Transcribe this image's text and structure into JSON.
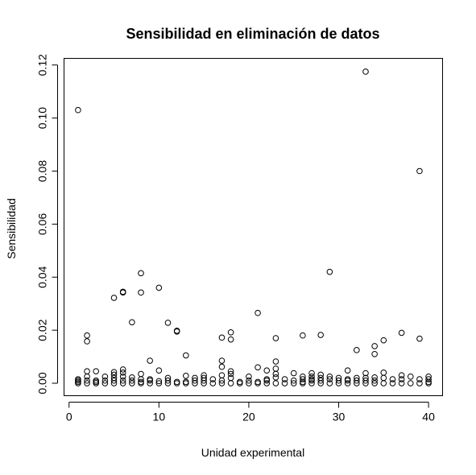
{
  "chart_data": {
    "type": "scatter",
    "title": "Sensibilidad en eliminación de datos",
    "xlabel": "Unidad experimental",
    "ylabel": "Sensibilidad",
    "xlim": [
      -0.56,
      41.56
    ],
    "ylim": [
      -0.0047,
      0.1225
    ],
    "x_ticks": [
      0,
      10,
      20,
      30,
      40
    ],
    "y_ticks": [
      0.0,
      0.02,
      0.04,
      0.06,
      0.08,
      0.1,
      0.12
    ],
    "x_tick_labels": [
      "0",
      "10",
      "20",
      "30",
      "40"
    ],
    "y_tick_labels": [
      "0.00",
      "0.02",
      "0.04",
      "0.06",
      "0.08",
      "0.10",
      "0.12"
    ],
    "grid": false,
    "legend": "none",
    "points": [
      [
        1,
        0.103
      ],
      [
        1,
        0.0015
      ],
      [
        1,
        0.001
      ],
      [
        1,
        0.0005
      ],
      [
        1,
        0.0
      ],
      [
        2,
        0.018
      ],
      [
        2,
        0.0158
      ],
      [
        2,
        0.0045
      ],
      [
        2,
        0.0025
      ],
      [
        2,
        0.001
      ],
      [
        2,
        0.0
      ],
      [
        3,
        0.0045
      ],
      [
        3,
        0.001
      ],
      [
        3,
        0.0005
      ],
      [
        3,
        0.0
      ],
      [
        4,
        0.0025
      ],
      [
        4,
        0.001
      ],
      [
        4,
        0.0
      ],
      [
        5,
        0.0322
      ],
      [
        5,
        0.0042
      ],
      [
        5,
        0.0032
      ],
      [
        5,
        0.002
      ],
      [
        5,
        0.001
      ],
      [
        5,
        0.0
      ],
      [
        6,
        0.0345
      ],
      [
        6,
        0.0342
      ],
      [
        6,
        0.0052
      ],
      [
        6,
        0.004
      ],
      [
        6,
        0.0025
      ],
      [
        6,
        0.001
      ],
      [
        6,
        0.0
      ],
      [
        7,
        0.023
      ],
      [
        7,
        0.0022
      ],
      [
        7,
        0.001
      ],
      [
        7,
        0.0
      ],
      [
        8,
        0.0415
      ],
      [
        8,
        0.0342
      ],
      [
        8,
        0.0035
      ],
      [
        8,
        0.0015
      ],
      [
        8,
        0.0005
      ],
      [
        8,
        0.0
      ],
      [
        9,
        0.0085
      ],
      [
        9,
        0.0015
      ],
      [
        9,
        0.001
      ],
      [
        9,
        0.0
      ],
      [
        10,
        0.036
      ],
      [
        10,
        0.0048
      ],
      [
        10,
        0.0008
      ],
      [
        10,
        0.0
      ],
      [
        11,
        0.0228
      ],
      [
        11,
        0.002
      ],
      [
        11,
        0.001
      ],
      [
        11,
        0.0
      ],
      [
        12,
        0.0198
      ],
      [
        12,
        0.0195
      ],
      [
        12,
        0.0005
      ],
      [
        12,
        0.0
      ],
      [
        13,
        0.0105
      ],
      [
        13,
        0.0028
      ],
      [
        13,
        0.0005
      ],
      [
        13,
        0.0
      ],
      [
        14,
        0.002
      ],
      [
        14,
        0.001
      ],
      [
        14,
        0.0
      ],
      [
        15,
        0.003
      ],
      [
        15,
        0.002
      ],
      [
        15,
        0.001
      ],
      [
        15,
        0.0
      ],
      [
        16,
        0.0015
      ],
      [
        16,
        0.0
      ],
      [
        17,
        0.0172
      ],
      [
        17,
        0.0085
      ],
      [
        17,
        0.0062
      ],
      [
        17,
        0.003
      ],
      [
        17,
        0.001
      ],
      [
        17,
        0.0
      ],
      [
        18,
        0.0192
      ],
      [
        18,
        0.0165
      ],
      [
        18,
        0.0045
      ],
      [
        18,
        0.0035
      ],
      [
        18,
        0.002
      ],
      [
        18,
        0.0
      ],
      [
        19,
        0.0005
      ],
      [
        19,
        0.0
      ],
      [
        20,
        0.0025
      ],
      [
        20,
        0.001
      ],
      [
        20,
        0.0
      ],
      [
        21,
        0.0265
      ],
      [
        21,
        0.006
      ],
      [
        21,
        0.0005
      ],
      [
        21,
        0.0
      ],
      [
        22,
        0.0048
      ],
      [
        22,
        0.0015
      ],
      [
        22,
        0.001
      ],
      [
        22,
        0.0
      ],
      [
        23,
        0.017
      ],
      [
        23,
        0.0082
      ],
      [
        23,
        0.0055
      ],
      [
        23,
        0.0035
      ],
      [
        23,
        0.0022
      ],
      [
        23,
        0.0
      ],
      [
        24,
        0.0015
      ],
      [
        24,
        0.0
      ],
      [
        25,
        0.0038
      ],
      [
        25,
        0.001
      ],
      [
        25,
        0.0
      ],
      [
        26,
        0.018
      ],
      [
        26,
        0.0025
      ],
      [
        26,
        0.0015
      ],
      [
        26,
        0.0005
      ],
      [
        26,
        0.0
      ],
      [
        27,
        0.0038
      ],
      [
        27,
        0.0025
      ],
      [
        27,
        0.0015
      ],
      [
        27,
        0.001
      ],
      [
        27,
        0.0
      ],
      [
        28,
        0.0182
      ],
      [
        28,
        0.0032
      ],
      [
        28,
        0.002
      ],
      [
        28,
        0.001
      ],
      [
        28,
        0.0
      ],
      [
        29,
        0.042
      ],
      [
        29,
        0.0025
      ],
      [
        29,
        0.0015
      ],
      [
        29,
        0.0
      ],
      [
        30,
        0.002
      ],
      [
        30,
        0.001
      ],
      [
        30,
        0.0
      ],
      [
        31,
        0.0048
      ],
      [
        31,
        0.0015
      ],
      [
        31,
        0.001
      ],
      [
        31,
        0.0
      ],
      [
        32,
        0.0125
      ],
      [
        32,
        0.002
      ],
      [
        32,
        0.001
      ],
      [
        32,
        0.0
      ],
      [
        33,
        0.1175
      ],
      [
        33,
        0.0038
      ],
      [
        33,
        0.002
      ],
      [
        33,
        0.001
      ],
      [
        33,
        0.0
      ],
      [
        34,
        0.014
      ],
      [
        34,
        0.011
      ],
      [
        34,
        0.0022
      ],
      [
        34,
        0.001
      ],
      [
        34,
        0.0
      ],
      [
        35,
        0.0162
      ],
      [
        35,
        0.004
      ],
      [
        35,
        0.002
      ],
      [
        35,
        0.0
      ],
      [
        36,
        0.0015
      ],
      [
        36,
        0.0
      ],
      [
        37,
        0.019
      ],
      [
        37,
        0.003
      ],
      [
        37,
        0.0015
      ],
      [
        37,
        0.0
      ],
      [
        38,
        0.0025
      ],
      [
        38,
        0.0
      ],
      [
        39,
        0.08
      ],
      [
        39,
        0.0168
      ],
      [
        39,
        0.0015
      ],
      [
        39,
        0.0
      ],
      [
        40,
        0.0025
      ],
      [
        40,
        0.0015
      ],
      [
        40,
        0.0005
      ],
      [
        40,
        0.0
      ]
    ]
  }
}
